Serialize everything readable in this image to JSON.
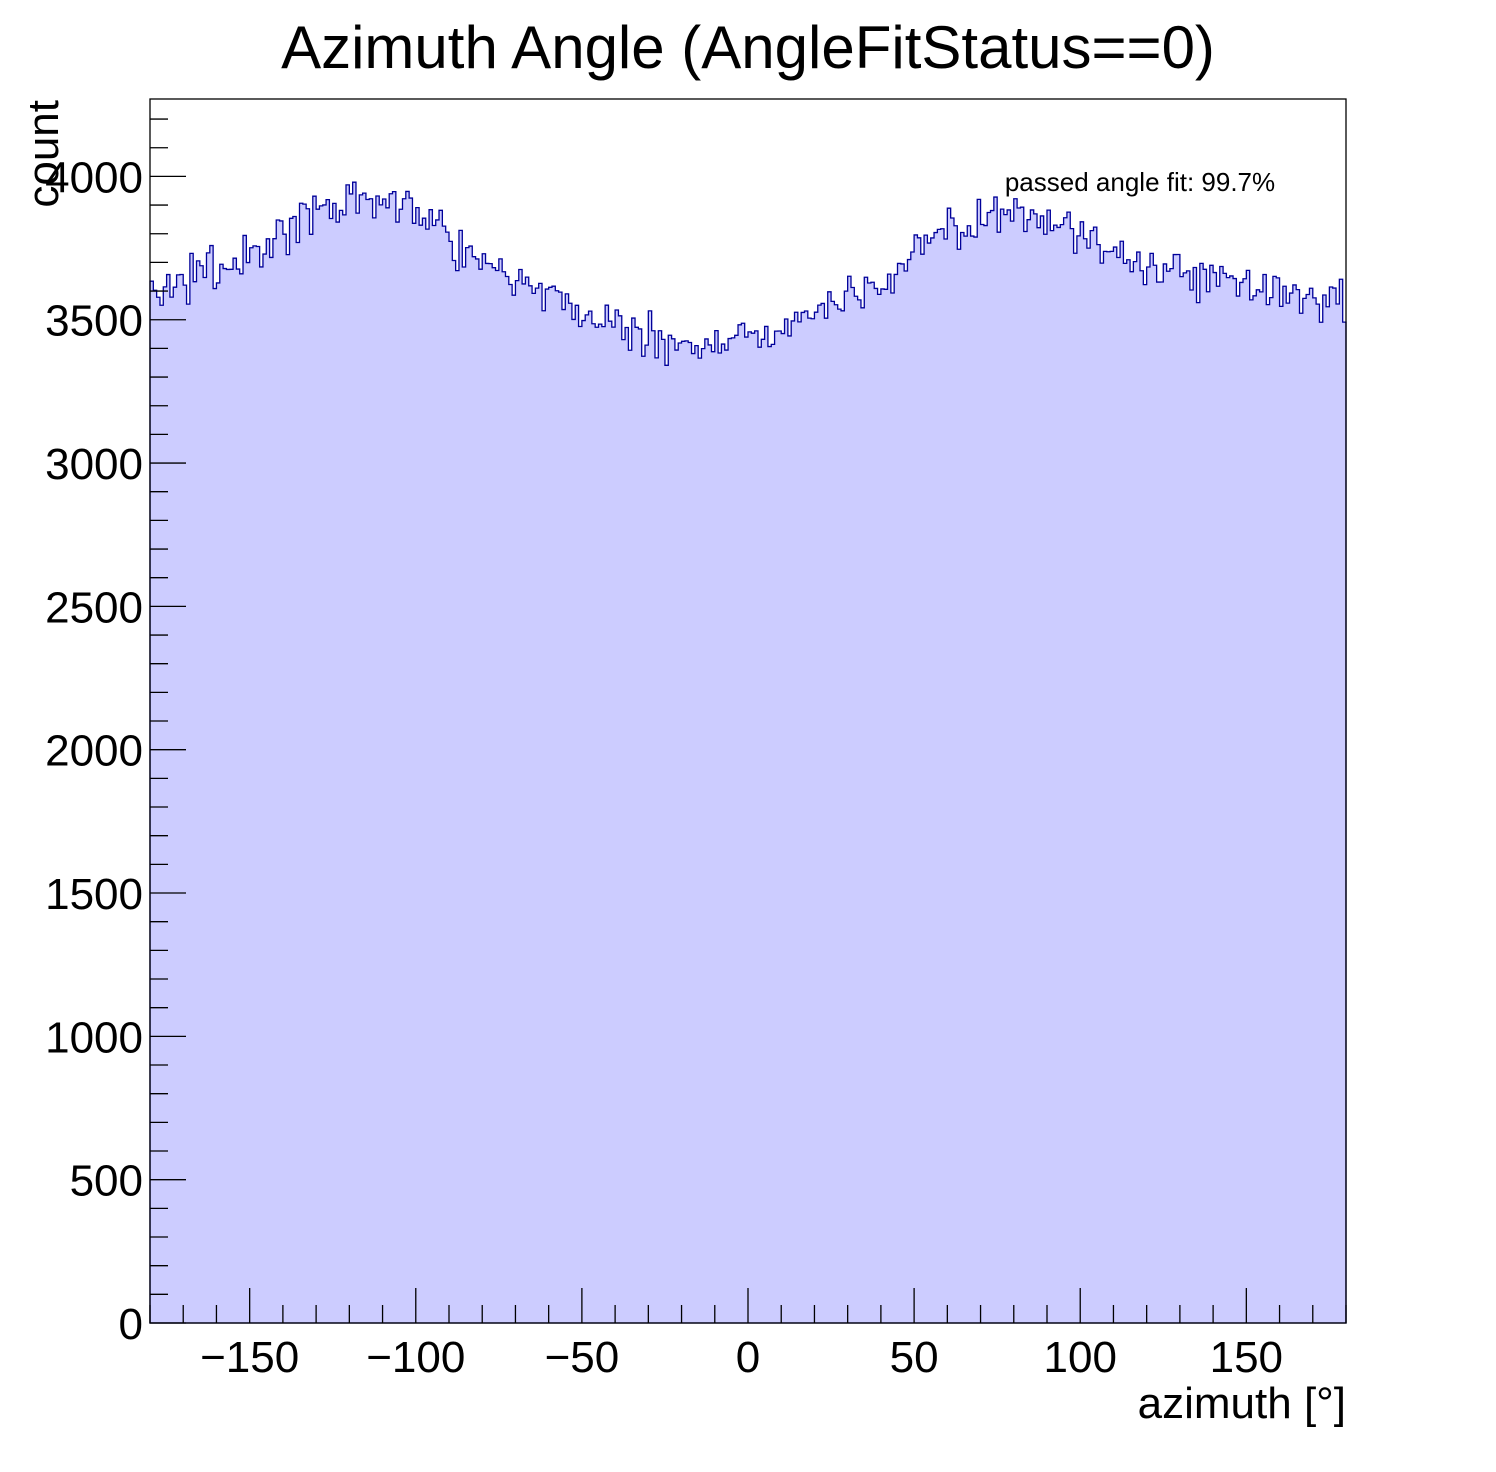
{
  "chart_data": {
    "type": "bar",
    "title": "Azimuth Angle (AngleFitStatus==0)",
    "xlabel": "azimuth [°]",
    "ylabel": "count",
    "xlim": [
      -180,
      180
    ],
    "ylim": [
      0,
      4270
    ],
    "xticks": [
      -150,
      -100,
      -50,
      0,
      50,
      100,
      150
    ],
    "xtick_labels": [
      "−150",
      "−100",
      "−50",
      "0",
      "50",
      "100",
      "150"
    ],
    "yticks": [
      0,
      500,
      1000,
      1500,
      2000,
      2500,
      3000,
      3500,
      4000
    ],
    "ytick_labels": [
      "0",
      "500",
      "1000",
      "1500",
      "2000",
      "2500",
      "3000",
      "3500",
      "4000"
    ],
    "annotation": "passed angle fit: 99.7%",
    "grid": false,
    "fill_color": "#ccccff",
    "line_color": "#000099",
    "bin_width": 1,
    "x": [
      -180,
      -175,
      -170,
      -165,
      -160,
      -155,
      -150,
      -145,
      -140,
      -135,
      -130,
      -125,
      -120,
      -115,
      -110,
      -105,
      -100,
      -95,
      -90,
      -85,
      -80,
      -75,
      -70,
      -65,
      -60,
      -55,
      -50,
      -45,
      -40,
      -35,
      -30,
      -25,
      -20,
      -15,
      -10,
      -5,
      0,
      5,
      10,
      15,
      20,
      25,
      30,
      35,
      40,
      45,
      50,
      55,
      60,
      65,
      70,
      75,
      80,
      85,
      90,
      95,
      100,
      105,
      110,
      115,
      120,
      125,
      130,
      135,
      140,
      145,
      150,
      155,
      160,
      165,
      170,
      175,
      180
    ],
    "values": [
      3590,
      3610,
      3640,
      3660,
      3670,
      3700,
      3730,
      3760,
      3800,
      3840,
      3870,
      3890,
      3900,
      3910,
      3905,
      3900,
      3890,
      3850,
      3800,
      3750,
      3720,
      3680,
      3650,
      3620,
      3590,
      3560,
      3530,
      3500,
      3480,
      3460,
      3440,
      3430,
      3420,
      3410,
      3410,
      3420,
      3440,
      3460,
      3480,
      3500,
      3520,
      3550,
      3580,
      3610,
      3640,
      3680,
      3730,
      3780,
      3810,
      3830,
      3840,
      3850,
      3850,
      3845,
      3840,
      3830,
      3800,
      3770,
      3740,
      3720,
      3700,
      3680,
      3660,
      3650,
      3640,
      3630,
      3620,
      3610,
      3600,
      3590,
      3580,
      3575,
      3570
    ]
  }
}
